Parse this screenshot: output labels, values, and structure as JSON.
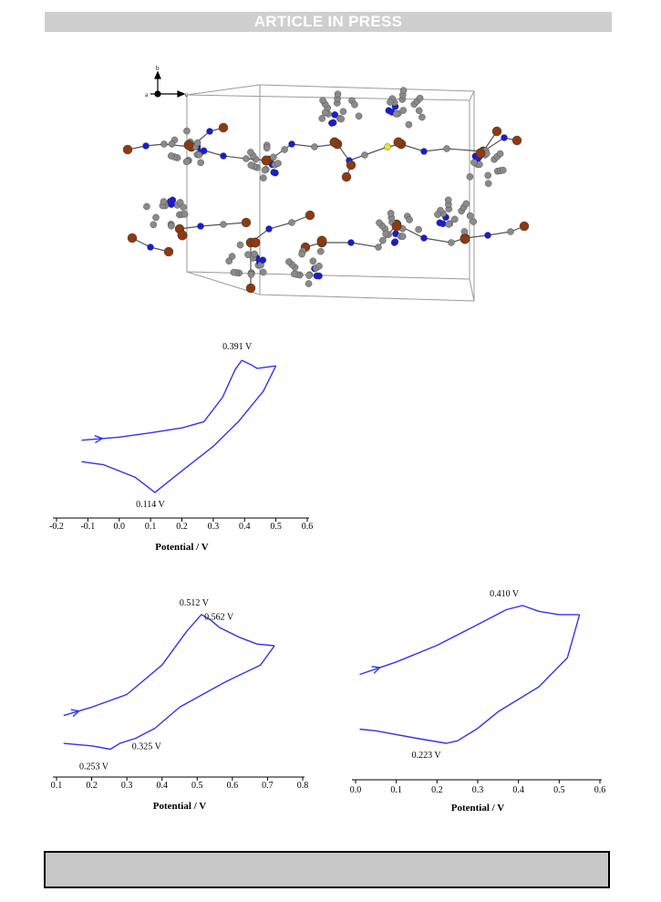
{
  "header": {
    "banner": "ARTICLE IN PRESS"
  },
  "figure": {
    "axis_labels": {
      "a": "a",
      "b": "b",
      "c": "c"
    },
    "colors": {
      "cu": "#8b3a12",
      "n": "#1a1ad4",
      "s": "#e8e820",
      "c": "#8a8a8a",
      "curve": "#3333ee"
    }
  },
  "chart_data": [
    {
      "type": "line",
      "xlabel": "Potential / V",
      "xlim": [
        -0.2,
        0.6
      ],
      "xticks": [
        "-0.2",
        "-0.1",
        "0.0",
        "0.1",
        "0.2",
        "0.3",
        "0.4",
        "0.5",
        "0.6"
      ],
      "series": [
        {
          "values": [
            [
              -0.12,
              -0.45
            ],
            [
              0.0,
              -0.4
            ],
            [
              0.1,
              -0.33
            ],
            [
              0.2,
              -0.25
            ],
            [
              0.27,
              -0.15
            ],
            [
              0.33,
              0.25
            ],
            [
              0.37,
              0.7
            ],
            [
              0.391,
              0.85
            ],
            [
              0.42,
              0.78
            ],
            [
              0.44,
              0.72
            ],
            [
              0.5,
              0.76
            ]
          ]
        },
        {
          "values": [
            [
              0.5,
              0.76
            ],
            [
              0.46,
              0.35
            ],
            [
              0.38,
              -0.15
            ],
            [
              0.3,
              -0.55
            ],
            [
              0.2,
              -0.95
            ],
            [
              0.114,
              -1.3
            ],
            [
              0.05,
              -1.05
            ],
            [
              -0.05,
              -0.85
            ],
            [
              -0.12,
              -0.8
            ]
          ]
        }
      ],
      "annotations": [
        {
          "text": "0.391 V",
          "x": 0.391,
          "y": 0.85
        },
        {
          "text": "0.114 V",
          "x": 0.114,
          "y": -1.3
        }
      ]
    },
    {
      "type": "line",
      "xlabel": "Potential / V",
      "xlim": [
        0.1,
        0.8
      ],
      "xticks": [
        "0.1",
        "0.2",
        "0.3",
        "0.4",
        "0.5",
        "0.6",
        "0.7",
        "0.8"
      ],
      "series": [
        {
          "values": [
            [
              0.12,
              -0.35
            ],
            [
              0.2,
              -0.25
            ],
            [
              0.3,
              -0.1
            ],
            [
              0.4,
              0.25
            ],
            [
              0.47,
              0.65
            ],
            [
              0.512,
              0.85
            ],
            [
              0.54,
              0.78
            ],
            [
              0.562,
              0.7
            ],
            [
              0.62,
              0.58
            ],
            [
              0.67,
              0.5
            ],
            [
              0.72,
              0.48
            ]
          ]
        },
        {
          "values": [
            [
              0.72,
              0.48
            ],
            [
              0.68,
              0.25
            ],
            [
              0.58,
              0.05
            ],
            [
              0.45,
              -0.25
            ],
            [
              0.38,
              -0.5
            ],
            [
              0.325,
              -0.62
            ],
            [
              0.28,
              -0.68
            ],
            [
              0.253,
              -0.75
            ],
            [
              0.2,
              -0.71
            ],
            [
              0.12,
              -0.68
            ]
          ]
        }
      ],
      "annotations": [
        {
          "text": "0.512 V",
          "x": 0.512,
          "y": 0.85
        },
        {
          "text": "0.562 V",
          "x": 0.562,
          "y": 0.7
        },
        {
          "text": "0.253 V",
          "x": 0.253,
          "y": -0.75
        },
        {
          "text": "0.325 V",
          "x": 0.325,
          "y": -0.62
        }
      ]
    },
    {
      "type": "line",
      "xlabel": "Potential / V",
      "xlim": [
        0.0,
        0.6
      ],
      "xticks": [
        "0.0",
        "0.1",
        "0.2",
        "0.3",
        "0.4",
        "0.5",
        "0.6"
      ],
      "series": [
        {
          "values": [
            [
              0.01,
              0.1
            ],
            [
              0.1,
              0.25
            ],
            [
              0.2,
              0.45
            ],
            [
              0.3,
              0.7
            ],
            [
              0.37,
              0.88
            ],
            [
              0.41,
              0.93
            ],
            [
              0.45,
              0.86
            ],
            [
              0.5,
              0.82
            ],
            [
              0.55,
              0.82
            ]
          ]
        },
        {
          "values": [
            [
              0.55,
              0.82
            ],
            [
              0.52,
              0.3
            ],
            [
              0.45,
              -0.05
            ],
            [
              0.35,
              -0.35
            ],
            [
              0.3,
              -0.55
            ],
            [
              0.25,
              -0.7
            ],
            [
              0.223,
              -0.73
            ],
            [
              0.15,
              -0.67
            ],
            [
              0.05,
              -0.58
            ],
            [
              0.01,
              -0.56
            ]
          ]
        }
      ],
      "annotations": [
        {
          "text": "0.410 V",
          "x": 0.41,
          "y": 0.93
        },
        {
          "text": "0.223 V",
          "x": 0.223,
          "y": -0.73
        }
      ]
    }
  ]
}
